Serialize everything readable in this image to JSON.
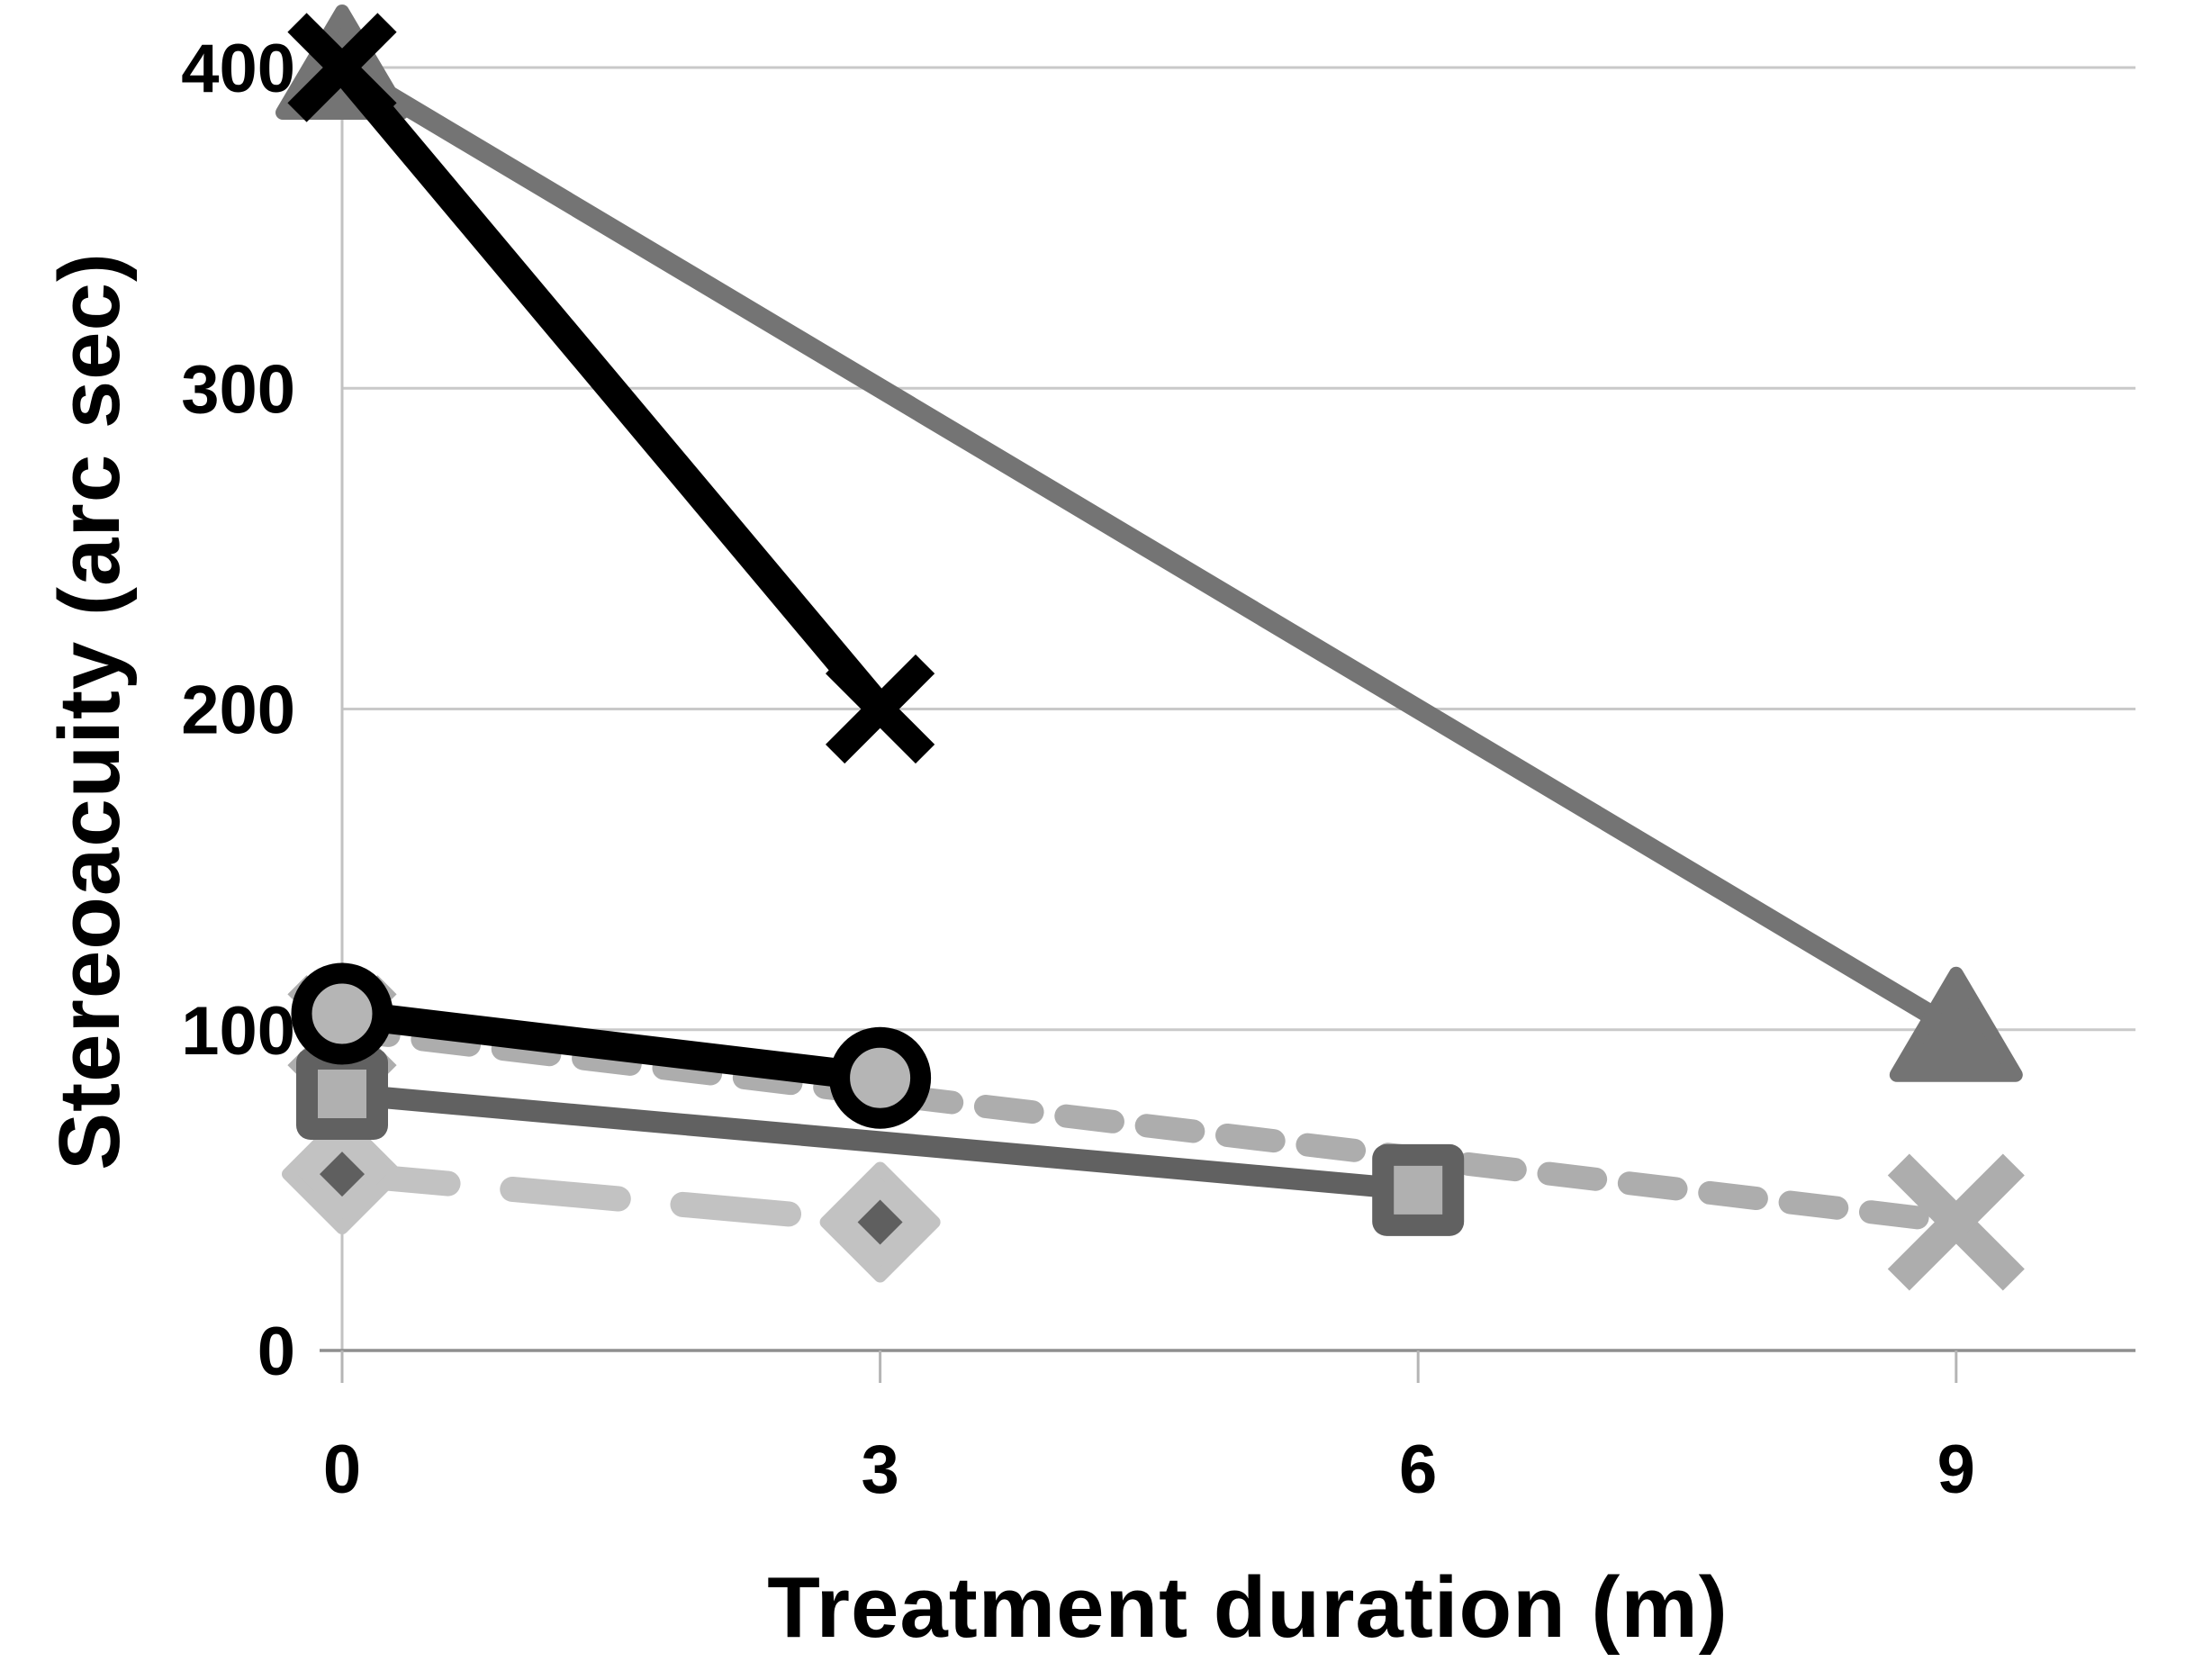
{
  "chart_data": {
    "type": "line",
    "title": "",
    "xlabel": "Treatment duration (m)",
    "ylabel": "Stereoacuity (arc sec)",
    "xlim": [
      0,
      10
    ],
    "ylim": [
      0,
      400
    ],
    "x_ticks": [
      0,
      3,
      6,
      9
    ],
    "y_ticks": [
      0,
      100,
      200,
      300,
      400
    ],
    "grid": "horizontal",
    "legend": "none",
    "colors": {
      "background": "#ffffff",
      "gridline": "#c9c9c9",
      "x_axis_line": "#8f8f8f",
      "y_axis_line": "#c2c2c2",
      "tick_mark": "#b5b5b5",
      "text": "#000000"
    },
    "series": [
      {
        "name": "light-gray-dashed-x",
        "marker": "x",
        "line": "dash",
        "color": "#adadad",
        "x": [
          0,
          9
        ],
        "values": [
          100,
          40
        ]
      },
      {
        "name": "light-gray-longdash-diamond",
        "marker": "diamond",
        "line": "longdash",
        "color": "#c2c2c2",
        "marker_inner_color": "#5f5f5f",
        "x": [
          0,
          3
        ],
        "values": [
          55,
          40
        ]
      },
      {
        "name": "dark-gray-solid-square",
        "marker": "square",
        "line": "solid",
        "color": "#616161",
        "marker_inner_color": "#b0b0b0",
        "x": [
          0,
          6
        ],
        "values": [
          80,
          50
        ]
      },
      {
        "name": "black-solid-circle",
        "marker": "circle",
        "line": "solid",
        "color": "#000000",
        "marker_inner_color": "#b5b5b5",
        "x": [
          0,
          3
        ],
        "values": [
          105,
          85
        ]
      },
      {
        "name": "gray-solid-triangle",
        "marker": "triangle",
        "line": "solid",
        "color": "#747474",
        "x": [
          0,
          9
        ],
        "values": [
          400,
          100
        ]
      },
      {
        "name": "black-solid-x",
        "marker": "x",
        "line": "solid",
        "color": "#000000",
        "x": [
          0,
          3
        ],
        "values": [
          400,
          200
        ]
      }
    ]
  }
}
